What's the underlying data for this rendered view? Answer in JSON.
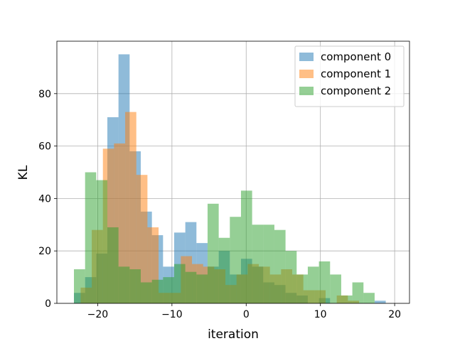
{
  "chart_data": {
    "type": "bar",
    "subtype": "overlapping-histogram",
    "title": "",
    "xlabel": "iteration",
    "ylabel": "KL",
    "xlim": [
      -25.5,
      22
    ],
    "ylim": [
      0,
      100
    ],
    "xticks": [
      -20,
      -10,
      0,
      10,
      20
    ],
    "yticks": [
      0,
      20,
      40,
      60,
      80
    ],
    "grid": true,
    "legend_position": "top-right",
    "series": [
      {
        "name": "component 0",
        "color": "#1f77b4",
        "alpha": 0.5,
        "bin_start": -23.2,
        "bin_width": 1.5,
        "counts": [
          4,
          10,
          19,
          71,
          95,
          58,
          35,
          26,
          14,
          27,
          31,
          23,
          14,
          20,
          11,
          17,
          14,
          8,
          7,
          4,
          3,
          0,
          2,
          0,
          0,
          0,
          0,
          1
        ]
      },
      {
        "name": "component 1",
        "color": "#ff7f0e",
        "alpha": 0.5,
        "bin_start": -22.3,
        "bin_width": 1.5,
        "counts": [
          6,
          28,
          59,
          61,
          73,
          49,
          29,
          4,
          4,
          18,
          15,
          14,
          13,
          7,
          11,
          15,
          14,
          11,
          13,
          11,
          5,
          5,
          0,
          3,
          1
        ]
      },
      {
        "name": "component 2",
        "color": "#2ca02c",
        "alpha": 0.5,
        "bin_start": -23.2,
        "bin_width": 1.5,
        "counts": [
          13,
          50,
          47,
          29,
          14,
          13,
          8,
          9,
          10,
          15,
          12,
          11,
          38,
          25,
          33,
          43,
          30,
          30,
          28,
          20,
          11,
          14,
          16,
          11,
          3,
          8,
          4
        ]
      }
    ]
  }
}
